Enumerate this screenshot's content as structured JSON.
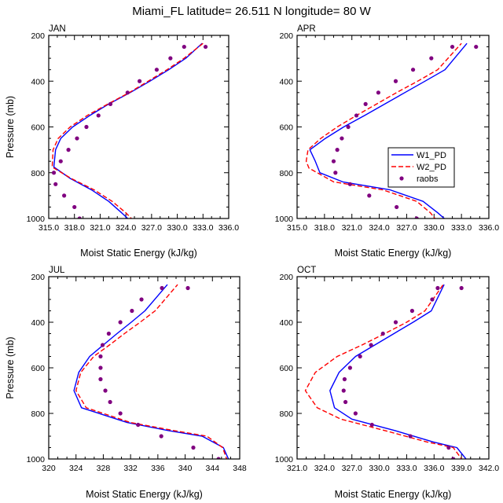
{
  "figure": {
    "title": "Miami_FL  latitude= 26.511 N longitude= 80 W"
  },
  "legend": {
    "panel": "APR",
    "entries": [
      {
        "label": "W1_PD",
        "color": "#0000ff",
        "style": "solid"
      },
      {
        "label": "W2_PD",
        "color": "#ff0000",
        "style": "dashed"
      },
      {
        "label": "raobs",
        "color": "#800080",
        "style": "marker"
      }
    ]
  },
  "chart_data": [
    {
      "type": "line",
      "name": "JAN",
      "title": "JAN",
      "xlabel": "Moist Static Energy (kJ/kg)",
      "ylabel": "Pressure (mb)",
      "xlim": [
        315.0,
        336.0
      ],
      "ylim": [
        1000,
        200
      ],
      "xticks": [
        315.0,
        318.0,
        321.0,
        324.0,
        327.0,
        330.0,
        333.0,
        336.0
      ],
      "xtick_labels": [
        "315.0",
        "318.0",
        "321.0",
        "324.0",
        "327.0",
        "330.0",
        "333.0",
        "336.0"
      ],
      "yticks": [
        200,
        400,
        600,
        800,
        1000
      ],
      "ytick_labels": [
        "200",
        "400",
        "600",
        "800",
        "1000"
      ],
      "series": [
        {
          "name": "W1_PD",
          "color": "#0000ff",
          "style": "solid",
          "x": [
            324.5,
            323.5,
            322.0,
            320.0,
            317.5,
            315.6,
            315.8,
            316.4,
            317.8,
            319.8,
            322.0,
            324.5,
            326.8,
            329.0,
            331.0,
            332.9
          ],
          "y": [
            1010,
            975,
            925,
            875,
            825,
            775,
            700,
            650,
            600,
            550,
            500,
            450,
            400,
            350,
            300,
            235
          ]
        },
        {
          "name": "W2_PD",
          "color": "#ff0000",
          "style": "dashed",
          "x": [
            324.9,
            324.0,
            322.4,
            320.3,
            317.6,
            315.4,
            315.5,
            316.1,
            317.5,
            319.5,
            321.9,
            324.4,
            326.6,
            328.8,
            330.8,
            333.0
          ],
          "y": [
            1010,
            975,
            925,
            875,
            825,
            775,
            700,
            650,
            600,
            550,
            500,
            450,
            400,
            350,
            300,
            235
          ]
        },
        {
          "name": "raobs",
          "color": "#800080",
          "style": "marker",
          "x": [
            318.6,
            318.0,
            316.8,
            315.8,
            315.6,
            316.4,
            317.3,
            318.3,
            319.4,
            320.8,
            322.2,
            324.2,
            325.6,
            327.6,
            329.2,
            330.8,
            333.3
          ],
          "y": [
            1000,
            950,
            900,
            850,
            800,
            750,
            700,
            650,
            600,
            550,
            500,
            450,
            400,
            350,
            300,
            250,
            250
          ]
        }
      ]
    },
    {
      "type": "line",
      "name": "APR",
      "title": "APR",
      "xlabel": "Moist Static Energy (kJ/kg)",
      "ylabel": "",
      "xlim": [
        315.0,
        336.0
      ],
      "ylim": [
        1000,
        200
      ],
      "xticks": [
        315.0,
        318.0,
        321.0,
        324.0,
        327.0,
        330.0,
        333.0,
        336.0
      ],
      "xtick_labels": [
        "315.0",
        "318.0",
        "321.0",
        "324.0",
        "327.0",
        "330.0",
        "333.0",
        "336.0"
      ],
      "yticks": [
        200,
        400,
        600,
        800,
        1000
      ],
      "ytick_labels": [
        "200",
        "400",
        "600",
        "800",
        "1000"
      ],
      "series": [
        {
          "name": "W1_PD",
          "color": "#0000ff",
          "style": "solid",
          "x": [
            331.4,
            330.4,
            328.8,
            325.2,
            320.0,
            317.5,
            317.0,
            316.4,
            318.1,
            320.1,
            322.4,
            324.6,
            326.8,
            329.0,
            331.2,
            333.6
          ],
          "y": [
            1010,
            975,
            925,
            875,
            840,
            800,
            750,
            700,
            650,
            600,
            550,
            500,
            450,
            400,
            350,
            235
          ]
        },
        {
          "name": "W2_PD",
          "color": "#ff0000",
          "style": "dashed",
          "x": [
            330.3,
            329.6,
            328.1,
            324.4,
            319.0,
            316.3,
            316.0,
            316.2,
            317.6,
            319.4,
            321.5,
            323.7,
            325.9,
            328.2,
            330.4,
            333.0
          ],
          "y": [
            1010,
            975,
            925,
            875,
            840,
            780,
            750,
            700,
            650,
            600,
            550,
            500,
            450,
            400,
            350,
            235
          ]
        },
        {
          "name": "raobs",
          "color": "#800080",
          "style": "marker",
          "x": [
            328.1,
            325.9,
            322.9,
            320.8,
            319.2,
            319.0,
            319.4,
            319.9,
            320.6,
            321.5,
            322.5,
            323.9,
            325.8,
            327.7,
            329.7,
            332.0,
            334.6
          ],
          "y": [
            1000,
            950,
            900,
            850,
            800,
            750,
            700,
            650,
            600,
            550,
            500,
            450,
            400,
            350,
            300,
            250,
            250
          ]
        }
      ]
    },
    {
      "type": "line",
      "name": "JUL",
      "title": "JUL",
      "xlabel": "Moist Static Energy (kJ/kg)",
      "ylabel": "Pressure (mb)",
      "xlim": [
        320,
        348
      ],
      "ylim": [
        1000,
        200
      ],
      "xticks": [
        320,
        324,
        328,
        332,
        336,
        340,
        344,
        348
      ],
      "xtick_labels": [
        "320",
        "324",
        "328",
        "332",
        "336",
        "340",
        "344",
        "348"
      ],
      "yticks": [
        200,
        400,
        600,
        800,
        1000
      ],
      "ytick_labels": [
        "200",
        "400",
        "600",
        "800",
        "1000"
      ],
      "series": [
        {
          "name": "W1_PD",
          "color": "#0000ff",
          "style": "solid",
          "x": [
            346.5,
            345.6,
            342.5,
            337.5,
            331.5,
            324.8,
            323.7,
            324.4,
            326.0,
            328.0,
            330.0,
            332.1,
            334.1,
            337.4
          ],
          "y": [
            1010,
            950,
            900,
            875,
            840,
            775,
            700,
            620,
            550,
            500,
            450,
            400,
            350,
            235
          ]
        },
        {
          "name": "W2_PD",
          "color": "#ff0000",
          "style": "dashed",
          "x": [
            346.2,
            345.5,
            343.2,
            338.3,
            332.0,
            325.5,
            324.0,
            324.7,
            326.6,
            328.9,
            331.1,
            333.4,
            335.6,
            338.9
          ],
          "y": [
            1010,
            950,
            900,
            875,
            840,
            775,
            700,
            620,
            550,
            500,
            450,
            400,
            350,
            235
          ]
        },
        {
          "name": "raobs",
          "color": "#800080",
          "style": "marker",
          "x": [
            344.9,
            341.2,
            336.5,
            333.1,
            330.5,
            329.0,
            328.3,
            327.6,
            327.6,
            327.6,
            327.9,
            328.8,
            330.5,
            332.2,
            333.6,
            336.6,
            340.4
          ],
          "y": [
            1000,
            950,
            900,
            850,
            800,
            750,
            700,
            650,
            600,
            550,
            500,
            450,
            400,
            350,
            300,
            250,
            250
          ]
        }
      ]
    },
    {
      "type": "line",
      "name": "OCT",
      "title": "OCT",
      "xlabel": "Moist Static Energy (kJ/kg)",
      "ylabel": "",
      "xlim": [
        321.0,
        342.0
      ],
      "ylim": [
        1000,
        200
      ],
      "xticks": [
        321.0,
        324.0,
        327.0,
        330.0,
        333.0,
        336.0,
        339.0,
        342.0
      ],
      "xtick_labels": [
        "321.0",
        "324.0",
        "327.0",
        "330.0",
        "333.0",
        "336.0",
        "339.0",
        "342.0"
      ],
      "yticks": [
        200,
        400,
        600,
        800,
        1000
      ],
      "ytick_labels": [
        "200",
        "400",
        "600",
        "800",
        "1000"
      ],
      "series": [
        {
          "name": "W1_PD",
          "color": "#0000ff",
          "style": "solid",
          "x": [
            339.7,
            338.5,
            335.9,
            331.7,
            327.0,
            325.1,
            324.6,
            325.6,
            327.4,
            329.5,
            331.6,
            333.7,
            335.7,
            337.1
          ],
          "y": [
            1010,
            950,
            925,
            875,
            825,
            775,
            700,
            620,
            550,
            500,
            450,
            400,
            350,
            235
          ]
        },
        {
          "name": "W2_PD",
          "color": "#ff0000",
          "style": "dashed",
          "x": [
            339.2,
            338.1,
            335.2,
            330.6,
            325.8,
            323.2,
            321.9,
            323.0,
            325.4,
            328.1,
            330.6,
            333.0,
            335.0,
            337.0
          ],
          "y": [
            1010,
            950,
            925,
            875,
            825,
            775,
            700,
            620,
            550,
            500,
            450,
            400,
            350,
            235
          ]
        },
        {
          "name": "raobs",
          "color": "#800080",
          "style": "marker",
          "x": [
            338.1,
            337.6,
            333.4,
            329.2,
            327.4,
            326.3,
            326.1,
            326.2,
            326.8,
            327.9,
            329.1,
            330.4,
            331.8,
            333.6,
            335.8,
            336.4,
            339.0
          ],
          "y": [
            1000,
            950,
            900,
            850,
            800,
            750,
            700,
            650,
            600,
            550,
            500,
            450,
            400,
            350,
            300,
            250,
            250
          ]
        }
      ]
    }
  ]
}
